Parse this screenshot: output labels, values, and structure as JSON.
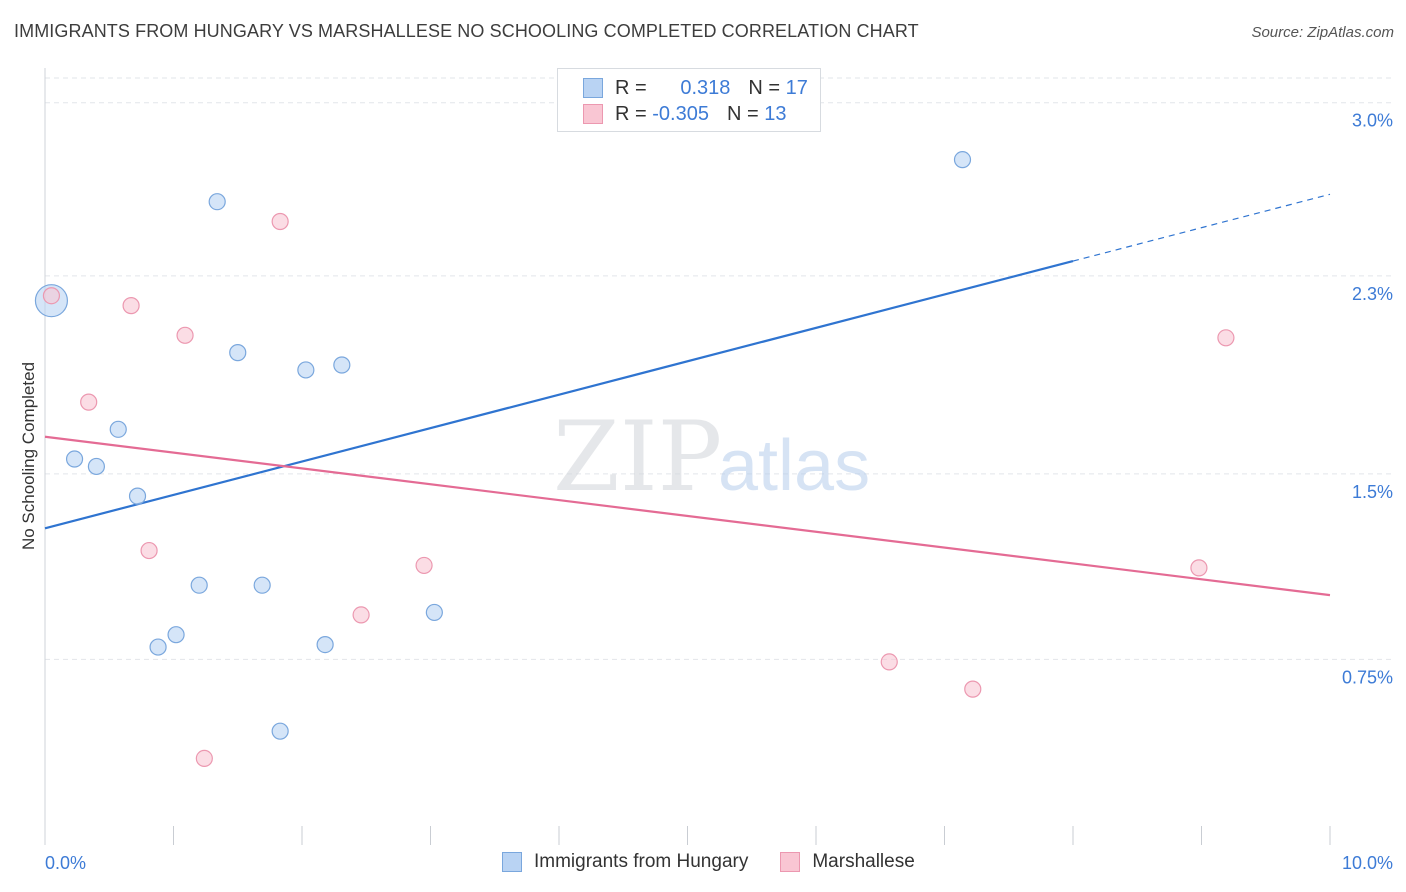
{
  "title": "IMMIGRANTS FROM HUNGARY VS MARSHALLESE NO SCHOOLING COMPLETED CORRELATION CHART",
  "source": "Source: ZipAtlas.com",
  "watermark": {
    "zip": "ZIP",
    "atlas": "atlas"
  },
  "legend_top": [
    {
      "r_label": "R =",
      "r_value": "0.318",
      "n_label": "N =",
      "n_value": "17"
    },
    {
      "r_label": "R =",
      "r_value": "-0.305",
      "n_label": "N =",
      "n_value": "13"
    }
  ],
  "colors": {
    "hungary_fill": "#b9d3f3",
    "hungary_stroke": "#7aa7dd",
    "hungary_line": "#2f74d0",
    "marshallese_fill": "#f9c6d3",
    "marshallese_stroke": "#ec98b0",
    "marshallese_line": "#e46b94",
    "tick_label": "#3d7bd6",
    "grid": "#e2e5ea"
  },
  "chart_data": {
    "type": "scatter",
    "title": "IMMIGRANTS FROM HUNGARY VS MARSHALLESE NO SCHOOLING COMPLETED CORRELATION CHART",
    "xlabel": "",
    "ylabel": "No Schooling Completed",
    "xlim": [
      0,
      10
    ],
    "ylim": [
      0,
      3.1
    ],
    "x_tick_labels": [
      "0.0%",
      "10.0%"
    ],
    "y_ticks": [
      0.75,
      1.5,
      2.3,
      3.0
    ],
    "y_tick_labels": [
      "0.75%",
      "1.5%",
      "2.3%",
      "3.0%"
    ],
    "grid": true,
    "legend_position": "bottom",
    "series": [
      {
        "name": "Immigrants from Hungary",
        "points": [
          {
            "x": 0.05,
            "y": 2.2,
            "size": "large"
          },
          {
            "x": 1.34,
            "y": 2.6
          },
          {
            "x": 1.5,
            "y": 1.99
          },
          {
            "x": 2.03,
            "y": 1.92
          },
          {
            "x": 2.31,
            "y": 1.94
          },
          {
            "x": 0.57,
            "y": 1.68
          },
          {
            "x": 0.23,
            "y": 1.56
          },
          {
            "x": 0.4,
            "y": 1.53
          },
          {
            "x": 0.72,
            "y": 1.41
          },
          {
            "x": 1.2,
            "y": 1.05
          },
          {
            "x": 1.69,
            "y": 1.05
          },
          {
            "x": 3.03,
            "y": 0.94
          },
          {
            "x": 1.02,
            "y": 0.85
          },
          {
            "x": 0.88,
            "y": 0.8
          },
          {
            "x": 2.18,
            "y": 0.81
          },
          {
            "x": 1.83,
            "y": 0.46
          },
          {
            "x": 7.14,
            "y": 2.77
          }
        ],
        "trend": {
          "x0": 0.0,
          "y0": 1.28,
          "x1": 8.0,
          "y1": 2.36,
          "dash_to_x": 10.0,
          "dash_to_y": 2.63
        }
      },
      {
        "name": "Marshallese",
        "points": [
          {
            "x": 0.05,
            "y": 2.22
          },
          {
            "x": 1.83,
            "y": 2.52
          },
          {
            "x": 0.67,
            "y": 2.18
          },
          {
            "x": 1.09,
            "y": 2.06
          },
          {
            "x": 0.34,
            "y": 1.79
          },
          {
            "x": 0.81,
            "y": 1.19
          },
          {
            "x": 2.95,
            "y": 1.13
          },
          {
            "x": 2.46,
            "y": 0.93
          },
          {
            "x": 1.24,
            "y": 0.35
          },
          {
            "x": 9.19,
            "y": 2.05
          },
          {
            "x": 8.98,
            "y": 1.12
          },
          {
            "x": 6.57,
            "y": 0.74
          },
          {
            "x": 7.22,
            "y": 0.63
          }
        ],
        "trend": {
          "x0": 0.0,
          "y0": 1.65,
          "x1": 10.0,
          "y1": 1.01
        }
      }
    ]
  }
}
